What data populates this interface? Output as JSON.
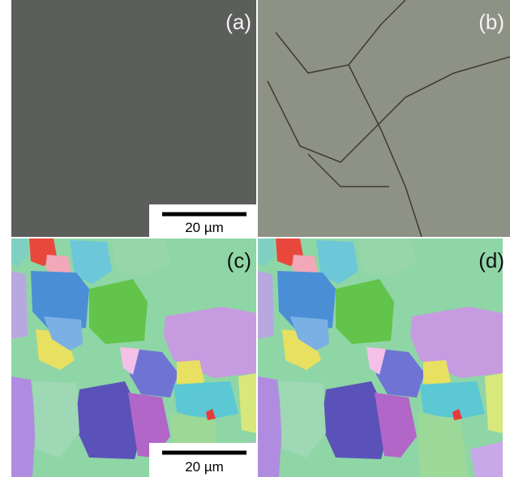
{
  "panels": [
    {
      "label": "(a)",
      "scale_bar": "20 µm"
    },
    {
      "label": "(b)"
    },
    {
      "label": "(c)",
      "scale_bar": "20 µm"
    },
    {
      "label": "(d)"
    }
  ]
}
